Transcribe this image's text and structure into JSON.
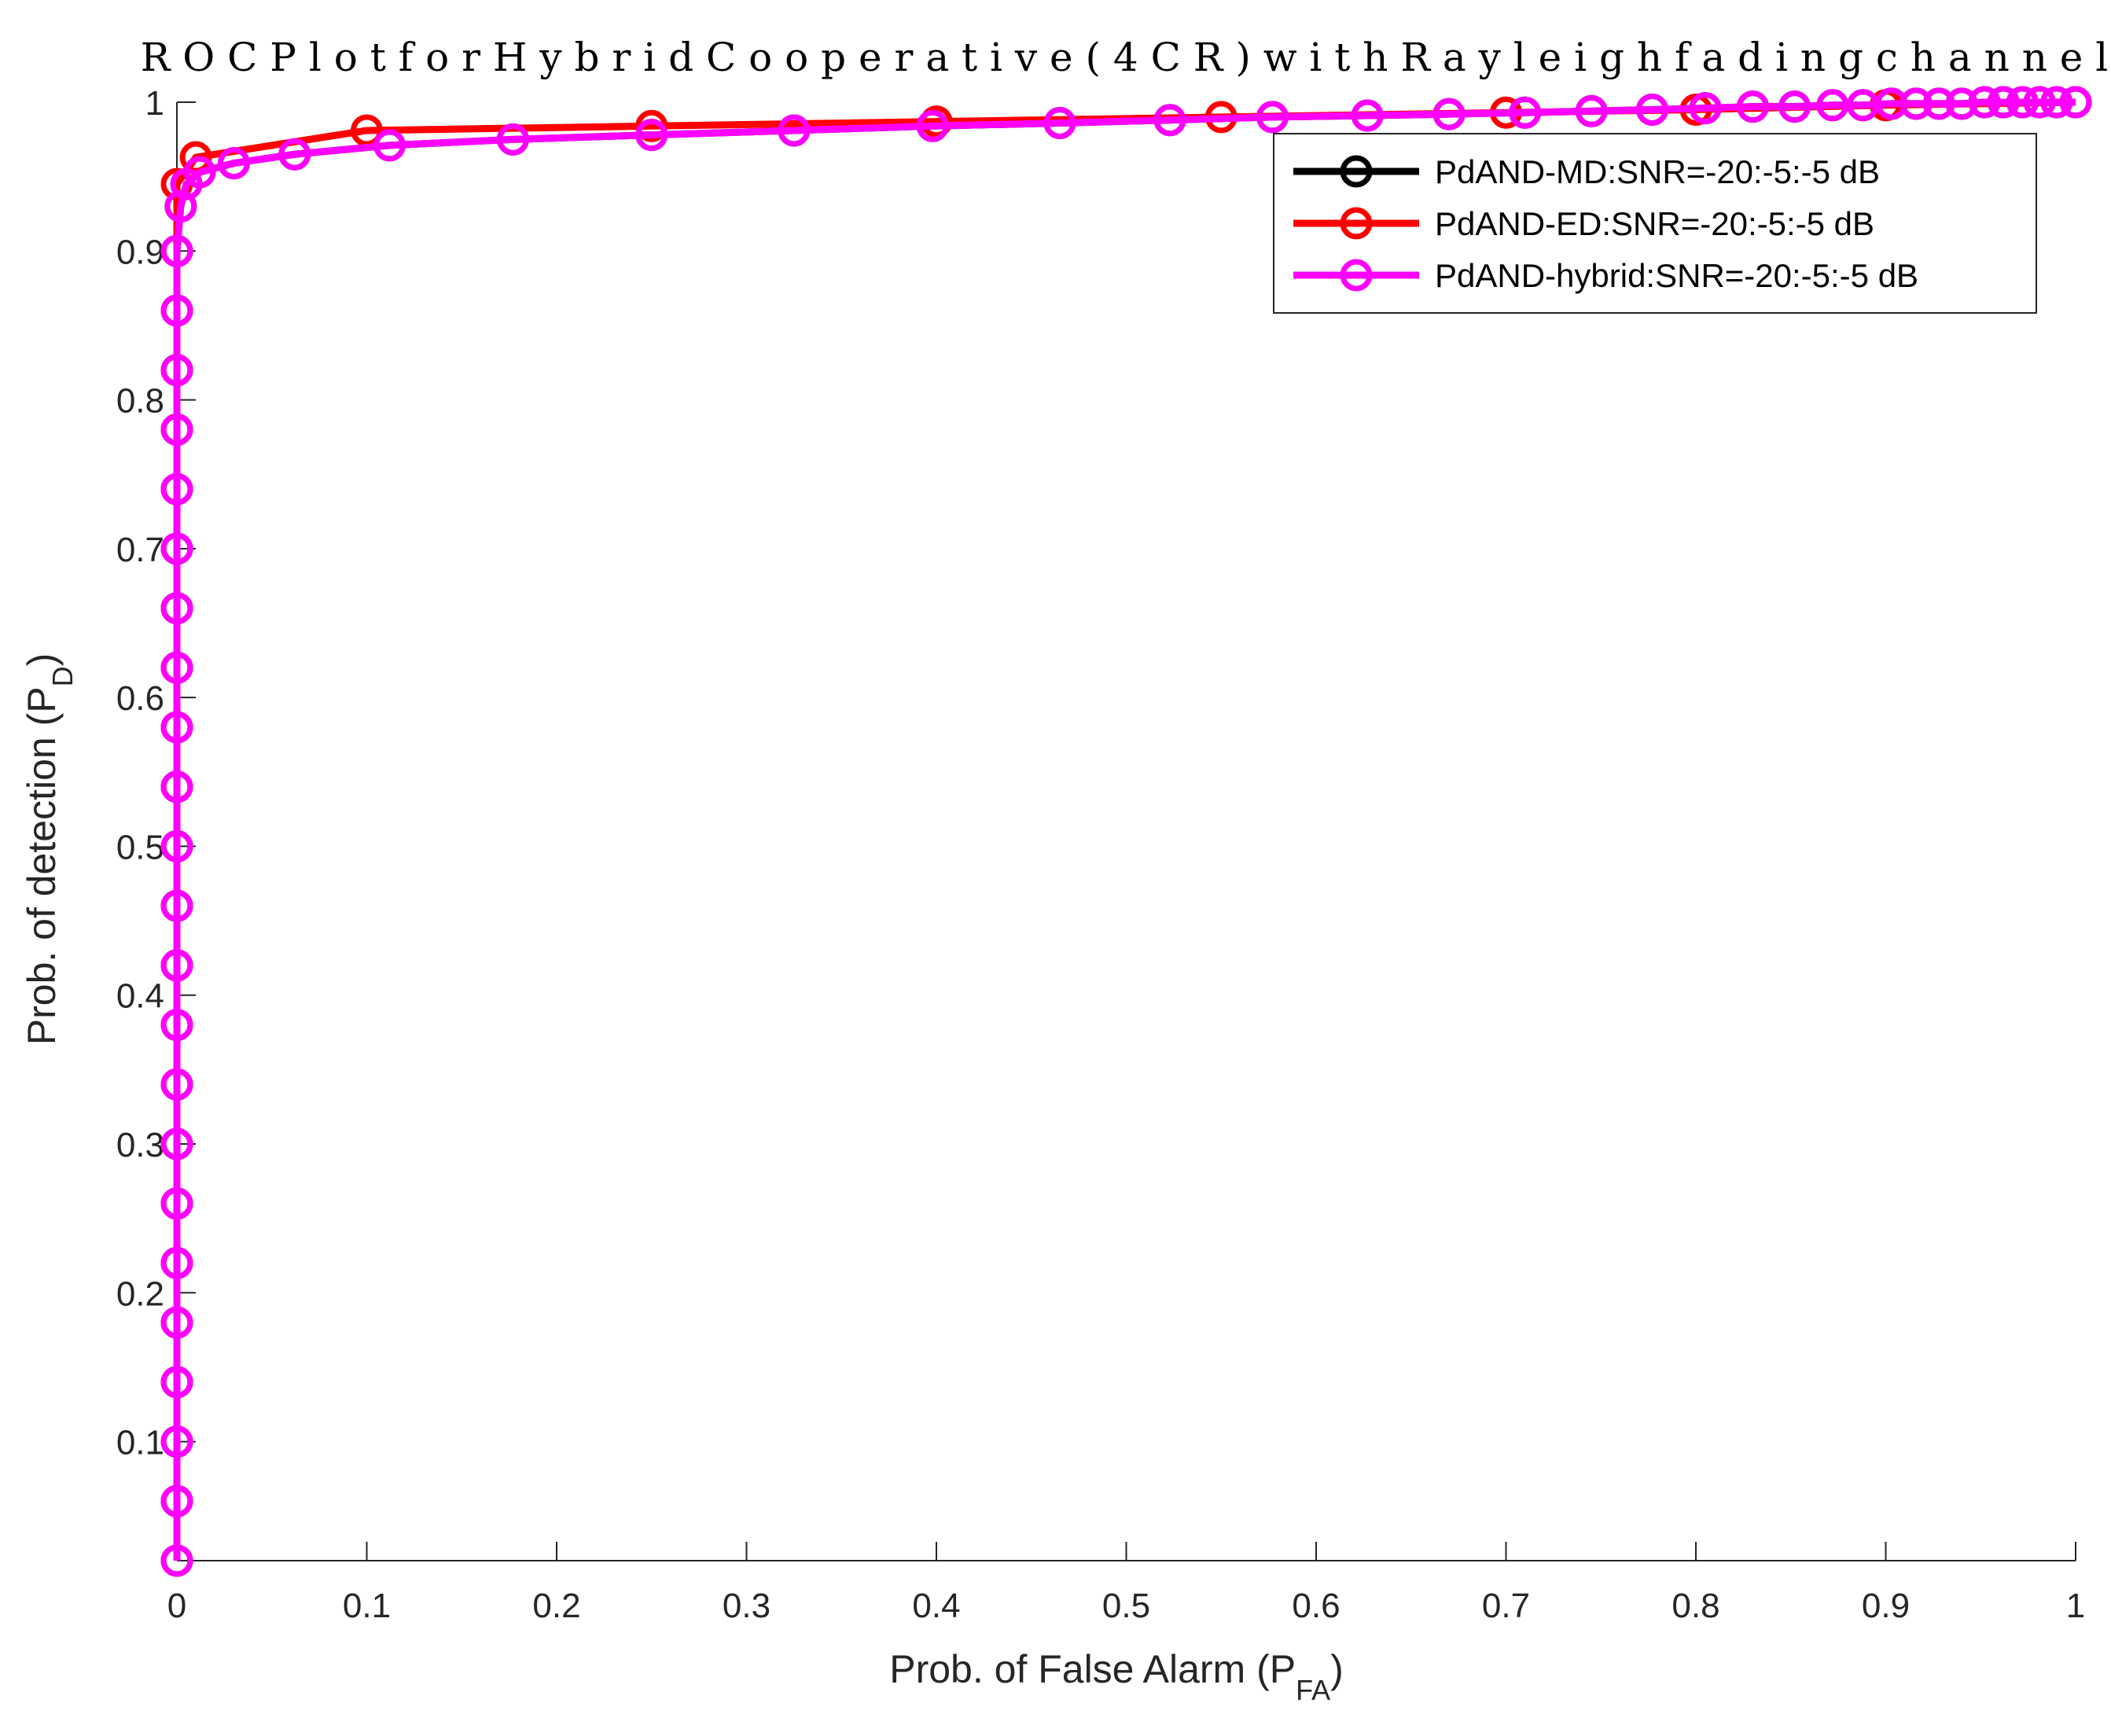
{
  "chart_data": {
    "type": "line",
    "title": "R O C  P l o t f o r H y b r i d  C o o p e r a t i v e  ( 4 C R ) w i t h  R a y l e i g h  f a d i n g  c h a n n e l",
    "xlabel": {
      "main": "Prob. of False Alarm (P",
      "sub": "FA",
      "close": ")"
    },
    "ylabel": {
      "main": "Prob. of detection (P",
      "sub": "D",
      "close": ")"
    },
    "xlim": [
      0,
      1
    ],
    "ylim": [
      0.02,
      1
    ],
    "xticks": [
      0,
      0.1,
      0.2,
      0.3,
      0.4,
      0.5,
      0.6,
      0.7,
      0.8,
      0.9,
      1
    ],
    "xtick_labels": [
      "0",
      "0.1",
      "0.2",
      "0.3",
      "0.4",
      "0.5",
      "0.6",
      "0.7",
      "0.8",
      "0.9",
      "1"
    ],
    "yticks": [
      0.1,
      0.2,
      0.3,
      0.4,
      0.5,
      0.6,
      0.7,
      0.8,
      0.9,
      1
    ],
    "ytick_labels": [
      "0.1",
      "0.2",
      "0.3",
      "0.4",
      "0.5",
      "0.6",
      "0.7",
      "0.8",
      "0.9",
      "1"
    ],
    "grid": false,
    "legend_position": "top-right",
    "series": [
      {
        "name": "PdAND-MD:SNR=-20:-5:-5 dB",
        "color": "#000000",
        "x": [
          0,
          0,
          0,
          0,
          0,
          0,
          0,
          0,
          0,
          0,
          0,
          0,
          0,
          0,
          0,
          0,
          0,
          0,
          0,
          0,
          0,
          0,
          0,
          0.002,
          0.005,
          0.012,
          0.03,
          0.062,
          0.112,
          0.177,
          0.25,
          0.325,
          0.398,
          0.465,
          0.523,
          0.577,
          0.627,
          0.67,
          0.71,
          0.745,
          0.777,
          0.805,
          0.83,
          0.852,
          0.872,
          0.888,
          0.903,
          0.916,
          0.928,
          0.94,
          0.952,
          0.962,
          0.972,
          0.981,
          0.99,
          1
        ],
        "y": [
          0.02,
          0.06,
          0.1,
          0.14,
          0.18,
          0.22,
          0.26,
          0.3,
          0.34,
          0.38,
          0.42,
          0.46,
          0.5,
          0.54,
          0.58,
          0.62,
          0.66,
          0.7,
          0.74,
          0.78,
          0.82,
          0.86,
          0.9,
          0.93,
          0.945,
          0.953,
          0.959,
          0.965,
          0.971,
          0.975,
          0.978,
          0.981,
          0.984,
          0.986,
          0.988,
          0.99,
          0.991,
          0.992,
          0.993,
          0.994,
          0.995,
          0.996,
          0.997,
          0.997,
          0.998,
          0.998,
          0.999,
          0.999,
          0.999,
          0.999,
          1,
          1,
          1,
          1,
          1,
          1
        ]
      },
      {
        "name": "PdAND-ED:SNR=-20:-5:-5 dB",
        "color": "#ff0000",
        "x": [
          0,
          0,
          0,
          0,
          0,
          0,
          0,
          0,
          0,
          0,
          0,
          0,
          0,
          0,
          0,
          0,
          0,
          0,
          0,
          0,
          0,
          0,
          0,
          0,
          0.01,
          0.1,
          0.25,
          0.4,
          0.55,
          0.7,
          0.8,
          0.9,
          1
        ],
        "y": [
          0.02,
          0.06,
          0.1,
          0.14,
          0.18,
          0.22,
          0.26,
          0.3,
          0.34,
          0.38,
          0.42,
          0.46,
          0.5,
          0.54,
          0.58,
          0.62,
          0.66,
          0.7,
          0.74,
          0.78,
          0.82,
          0.86,
          0.9,
          0.945,
          0.963,
          0.981,
          0.984,
          0.987,
          0.99,
          0.993,
          0.995,
          0.998,
          1
        ]
      },
      {
        "name": "PdAND-hybrid:SNR=-20:-5:-5 dB",
        "color": "#ff00ff",
        "x": [
          0,
          0,
          0,
          0,
          0,
          0,
          0,
          0,
          0,
          0,
          0,
          0,
          0,
          0,
          0,
          0,
          0,
          0,
          0,
          0,
          0,
          0,
          0,
          0.002,
          0.005,
          0.012,
          0.03,
          0.062,
          0.112,
          0.177,
          0.25,
          0.325,
          0.398,
          0.465,
          0.523,
          0.577,
          0.627,
          0.67,
          0.71,
          0.745,
          0.777,
          0.805,
          0.83,
          0.852,
          0.872,
          0.888,
          0.903,
          0.916,
          0.928,
          0.94,
          0.952,
          0.962,
          0.972,
          0.981,
          0.99,
          1
        ],
        "y": [
          0.02,
          0.06,
          0.1,
          0.14,
          0.18,
          0.22,
          0.26,
          0.3,
          0.34,
          0.38,
          0.42,
          0.46,
          0.5,
          0.54,
          0.58,
          0.62,
          0.66,
          0.7,
          0.74,
          0.78,
          0.82,
          0.86,
          0.9,
          0.93,
          0.945,
          0.953,
          0.959,
          0.965,
          0.971,
          0.975,
          0.978,
          0.981,
          0.984,
          0.986,
          0.988,
          0.99,
          0.991,
          0.992,
          0.993,
          0.994,
          0.995,
          0.996,
          0.997,
          0.997,
          0.998,
          0.998,
          0.999,
          0.999,
          0.999,
          0.999,
          1,
          1,
          1,
          1,
          1,
          1
        ]
      }
    ]
  }
}
